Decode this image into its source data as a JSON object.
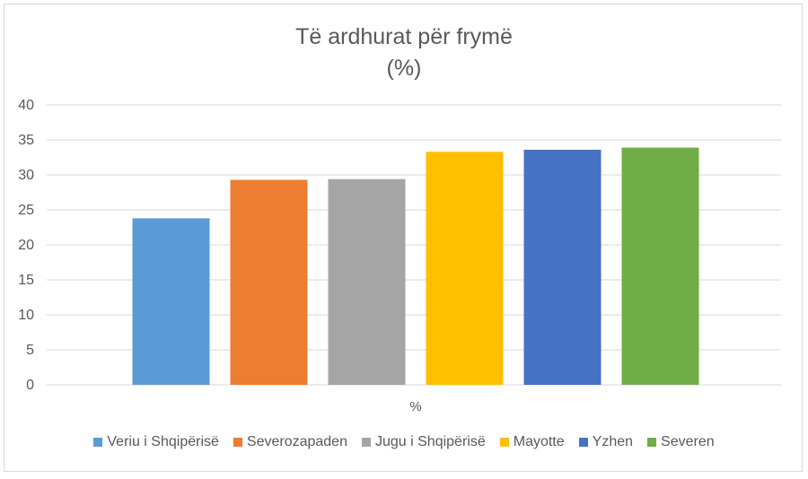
{
  "chart_data": {
    "type": "bar",
    "title": "Të ardhurat për frymë",
    "subtitle": "(%)",
    "categories": [
      "%"
    ],
    "xlabel": "",
    "ylabel": "",
    "ylim": [
      0,
      40
    ],
    "yticks": [
      0,
      5,
      10,
      15,
      20,
      25,
      30,
      35,
      40
    ],
    "grid": true,
    "legend_position": "bottom",
    "series": [
      {
        "name": "Veriu i Shqipërisë",
        "values": [
          23.8
        ],
        "color": "#5b9bd5"
      },
      {
        "name": "Severozapaden",
        "values": [
          29.3
        ],
        "color": "#ed7d31"
      },
      {
        "name": "Jugu i Shqipërisë",
        "values": [
          29.4
        ],
        "color": "#a5a5a5"
      },
      {
        "name": "Mayotte",
        "values": [
          33.3
        ],
        "color": "#ffc000"
      },
      {
        "name": "Yzhen",
        "values": [
          33.6
        ],
        "color": "#4472c4"
      },
      {
        "name": "Severen",
        "values": [
          33.9
        ],
        "color": "#70ad47"
      }
    ]
  }
}
